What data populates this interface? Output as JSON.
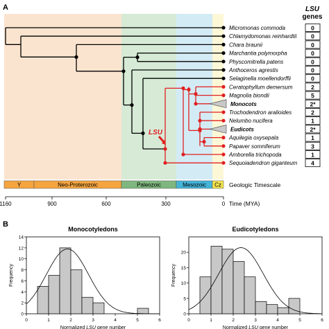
{
  "panel_a": {
    "label": "A",
    "taxa": [
      {
        "name": "Micromonas commoda",
        "genes": "0",
        "lsu": false
      },
      {
        "name": "Chlamydomonas reinhardtii",
        "genes": "0",
        "lsu": false
      },
      {
        "name": "Chara braunii",
        "genes": "0",
        "lsu": false
      },
      {
        "name": "Marchantia polymorpha",
        "genes": "0",
        "lsu": false
      },
      {
        "name": "Physcomitrella patens",
        "genes": "0",
        "lsu": false
      },
      {
        "name": "Anthoceros agrestis",
        "genes": "0",
        "lsu": false
      },
      {
        "name": "Selaginella moellendorffii",
        "genes": "0",
        "lsu": false
      },
      {
        "name": "Ceratophyllum demersum",
        "genes": "2",
        "lsu": true
      },
      {
        "name": "Magnolia biondii",
        "genes": "5",
        "lsu": true
      },
      {
        "name": "Monocots",
        "genes": "2*",
        "lsu": true,
        "group": true
      },
      {
        "name": "Trochodendron aralioides",
        "genes": "2",
        "lsu": true
      },
      {
        "name": "Nelumbo nucifera",
        "genes": "1",
        "lsu": true
      },
      {
        "name": "Eudicots",
        "genes": "2*",
        "lsu": true,
        "group": true
      },
      {
        "name": "Aquilegia oxysepala",
        "genes": "1",
        "lsu": true
      },
      {
        "name": "Papaver somniferum",
        "genes": "3",
        "lsu": true
      },
      {
        "name": "Amborella trichopoda",
        "genes": "1",
        "lsu": true
      },
      {
        "name": "Sequoiadendron giganteum",
        "genes": "4",
        "lsu": true
      }
    ],
    "genes_header_italic": "LSU",
    "genes_header": "genes",
    "lsu_marker": "LSU",
    "eras": [
      {
        "label": "Y",
        "color": "#f5a53f"
      },
      {
        "label": "Neo-Proterozoic",
        "color": "#f5a53f"
      },
      {
        "label": "Paleozoic",
        "color": "#7fb77e"
      },
      {
        "label": "Mesozoic",
        "color": "#45b3d8"
      },
      {
        "label": "Cz",
        "color": "#f3e34f"
      }
    ],
    "timescale_label": "Geologic Timescale",
    "axis_ticks": [
      "1160",
      "900",
      "600",
      "300",
      "0"
    ],
    "axis_label": "Time (MYA)"
  },
  "panel_b": {
    "label": "B",
    "x_axis_label_prefix": "Normalized ",
    "x_axis_label_italic": "LSU",
    "x_axis_label_suffix": " gene number",
    "y_axis_label": "Frequency"
  },
  "chart_data": [
    {
      "type": "bar",
      "title": "Monocotyledons",
      "xlabel": "Normalized LSU gene number",
      "ylabel": "Frequency",
      "bins": [
        [
          0.5,
          1
        ],
        [
          1,
          1.5
        ],
        [
          1.5,
          2
        ],
        [
          2,
          2.5
        ],
        [
          2.5,
          3
        ],
        [
          3,
          3.5
        ],
        [
          3.5,
          4
        ],
        [
          4,
          4.5
        ],
        [
          4.5,
          5
        ],
        [
          5,
          5.5
        ]
      ],
      "values": [
        5,
        7,
        12,
        8,
        3,
        2,
        0,
        0,
        0,
        1
      ],
      "xlim": [
        0,
        6
      ],
      "ylim": [
        0,
        14
      ],
      "x_ticks": [
        0,
        1,
        2,
        3,
        4,
        5,
        6
      ],
      "y_ticks": [
        0,
        2,
        4,
        6,
        8,
        10,
        12,
        14
      ],
      "fit_curve": {
        "type": "normal",
        "peak": 11.8,
        "mean": 1.85,
        "sd": 0.95
      }
    },
    {
      "type": "bar",
      "title": "Eudicotyledons",
      "xlabel": "Normalized LSU gene number",
      "ylabel": "Frequency",
      "bins": [
        [
          0.5,
          1
        ],
        [
          1,
          1.5
        ],
        [
          1.5,
          2
        ],
        [
          2,
          2.5
        ],
        [
          2.5,
          3
        ],
        [
          3,
          3.5
        ],
        [
          3.5,
          4
        ],
        [
          4,
          4.5
        ],
        [
          4.5,
          5
        ],
        [
          5,
          5.5
        ]
      ],
      "values": [
        12,
        22,
        21,
        17,
        12,
        4,
        3,
        2,
        5,
        0
      ],
      "xlim": [
        0,
        6
      ],
      "ylim": [
        0,
        25
      ],
      "x_ticks": [
        0,
        1,
        2,
        3,
        4,
        5,
        6
      ],
      "y_ticks": [
        0,
        5,
        10,
        15,
        20
      ],
      "fit_curve": {
        "type": "normal",
        "peak": 21.5,
        "mean": 2.35,
        "sd": 1.0
      }
    }
  ]
}
